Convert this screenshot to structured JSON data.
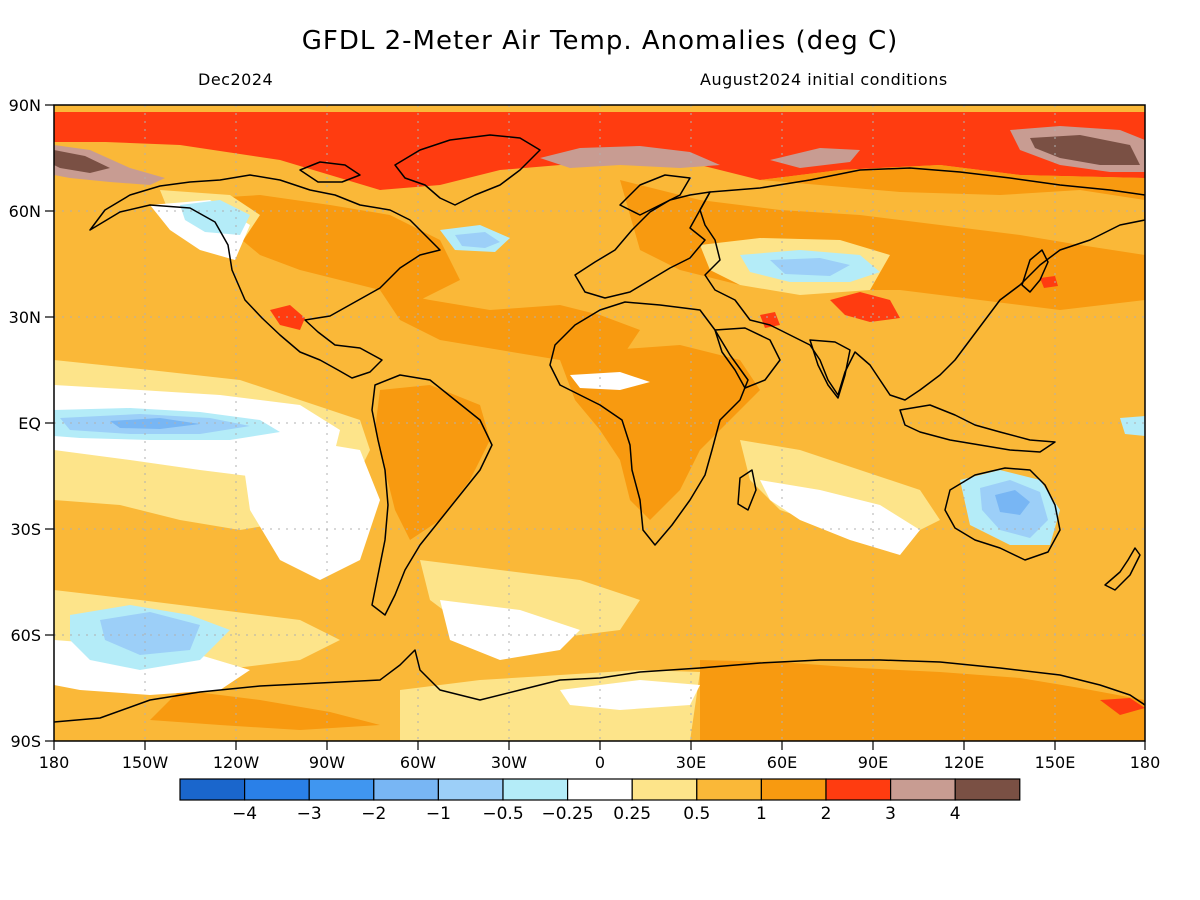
{
  "title": "GFDL 2-Meter Air Temp. Anomalies (deg C)",
  "valid_month": "Dec2024",
  "initial_conditions": "August2024 initial conditions",
  "lat_labels": [
    "90N",
    "60N",
    "30N",
    "EQ",
    "30S",
    "60S",
    "90S"
  ],
  "lon_labels": [
    "180",
    "150W",
    "120W",
    "90W",
    "60W",
    "30W",
    "0",
    "30E",
    "60E",
    "90E",
    "120E",
    "150E",
    "180"
  ],
  "colorbar": {
    "colors": [
      "#1a66cc",
      "#2a80e8",
      "#4096f0",
      "#78b6f4",
      "#9ccff8",
      "#b4ecf8",
      "#ffffff",
      "#fde48a",
      "#fab838",
      "#f89a10",
      "#ff3c10",
      "#c89c92",
      "#7a5044"
    ],
    "labels": [
      "-4",
      "-3",
      "-2",
      "-1",
      "-0.5",
      "-0.25",
      "0.25",
      "0.5",
      "1",
      "2",
      "3",
      "4"
    ]
  },
  "colors": {
    "land_outline": "#000000",
    "grid": "#b0b0b0",
    "base_fill": "#fab838"
  }
}
